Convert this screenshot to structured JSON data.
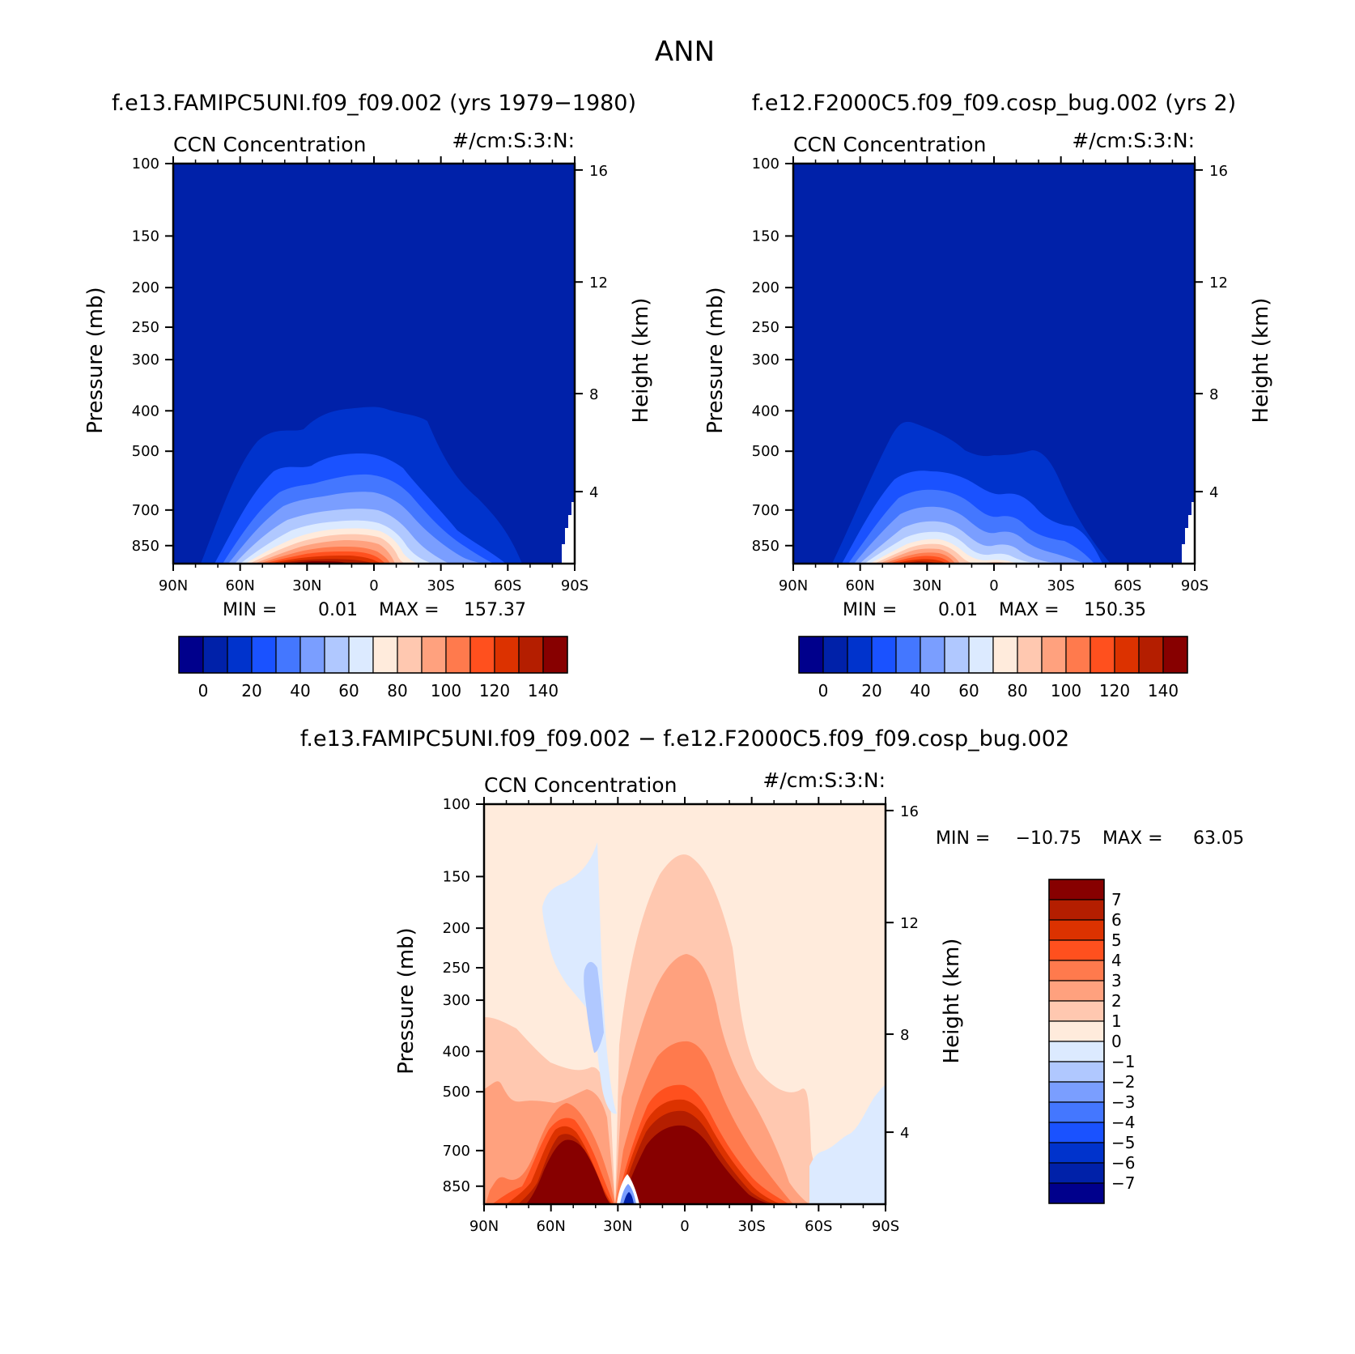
{
  "figure": {
    "title": "ANN"
  },
  "palette": {
    "colors": [
      "#00008c",
      "#0021a9",
      "#0033cc",
      "#1a52ff",
      "#4477ff",
      "#7a9eff",
      "#b0c8ff",
      "#dceaff",
      "#ffebdc",
      "#ffc8b0",
      "#ffa17e",
      "#ff7a4d",
      "#ff501e",
      "#dc3200",
      "#b41e00",
      "#870000"
    ]
  },
  "chart_data": [
    {
      "id": "panel1",
      "type": "heatmap",
      "panel_title": "f.e13.FAMIPC5UNI.f09_f09.002 (yrs 1979−1980)",
      "variable": "CCN Concentration",
      "units": "#/cm:S:3:N:",
      "ylabel": "Pressure (mb)",
      "ylabel_right": "Height (km)",
      "x_ticks": [
        "90N",
        "60N",
        "30N",
        "0",
        "30S",
        "60S",
        "90S"
      ],
      "y_ticks": [
        "100",
        "150",
        "200",
        "250",
        "300",
        "400",
        "500",
        "700",
        "850"
      ],
      "y_right_ticks": [
        "16",
        "12",
        "8",
        "4"
      ],
      "min_label": "MIN =",
      "min_value": "0.01",
      "max_label": "MAX =",
      "max_value": "157.37",
      "colorbar_ticks": [
        "0",
        "20",
        "40",
        "60",
        "80",
        "100",
        "120",
        "140"
      ],
      "colorbar_orientation": "horizontal"
    },
    {
      "id": "panel2",
      "type": "heatmap",
      "panel_title": "f.e12.F2000C5.f09_f09.cosp_bug.002 (yrs 2)",
      "variable": "CCN Concentration",
      "units": "#/cm:S:3:N:",
      "ylabel": "Pressure (mb)",
      "ylabel_right": "Height (km)",
      "x_ticks": [
        "90N",
        "60N",
        "30N",
        "0",
        "30S",
        "60S",
        "90S"
      ],
      "y_ticks": [
        "100",
        "150",
        "200",
        "250",
        "300",
        "400",
        "500",
        "700",
        "850"
      ],
      "y_right_ticks": [
        "16",
        "12",
        "8",
        "4"
      ],
      "min_label": "MIN =",
      "min_value": "0.01",
      "max_label": "MAX =",
      "max_value": "150.35",
      "colorbar_ticks": [
        "0",
        "20",
        "40",
        "60",
        "80",
        "100",
        "120",
        "140"
      ],
      "colorbar_orientation": "horizontal"
    },
    {
      "id": "panel3",
      "type": "heatmap",
      "panel_title": "f.e13.FAMIPC5UNI.f09_f09.002 − f.e12.F2000C5.f09_f09.cosp_bug.002",
      "variable": "CCN Concentration",
      "units": "#/cm:S:3:N:",
      "ylabel": "Pressure (mb)",
      "ylabel_right": "Height (km)",
      "x_ticks": [
        "90N",
        "60N",
        "30N",
        "0",
        "30S",
        "60S",
        "90S"
      ],
      "y_ticks": [
        "100",
        "150",
        "200",
        "250",
        "300",
        "400",
        "500",
        "700",
        "850"
      ],
      "y_right_ticks": [
        "16",
        "12",
        "8",
        "4"
      ],
      "min_label": "MIN =",
      "min_value": "−10.75",
      "max_label": "MAX =",
      "max_value": "63.05",
      "colorbar_ticks": [
        "7",
        "6",
        "5",
        "4",
        "3",
        "2",
        "1",
        "0",
        "−1",
        "−2",
        "−3",
        "−4",
        "−5",
        "−6",
        "−7"
      ],
      "colorbar_orientation": "vertical"
    }
  ]
}
